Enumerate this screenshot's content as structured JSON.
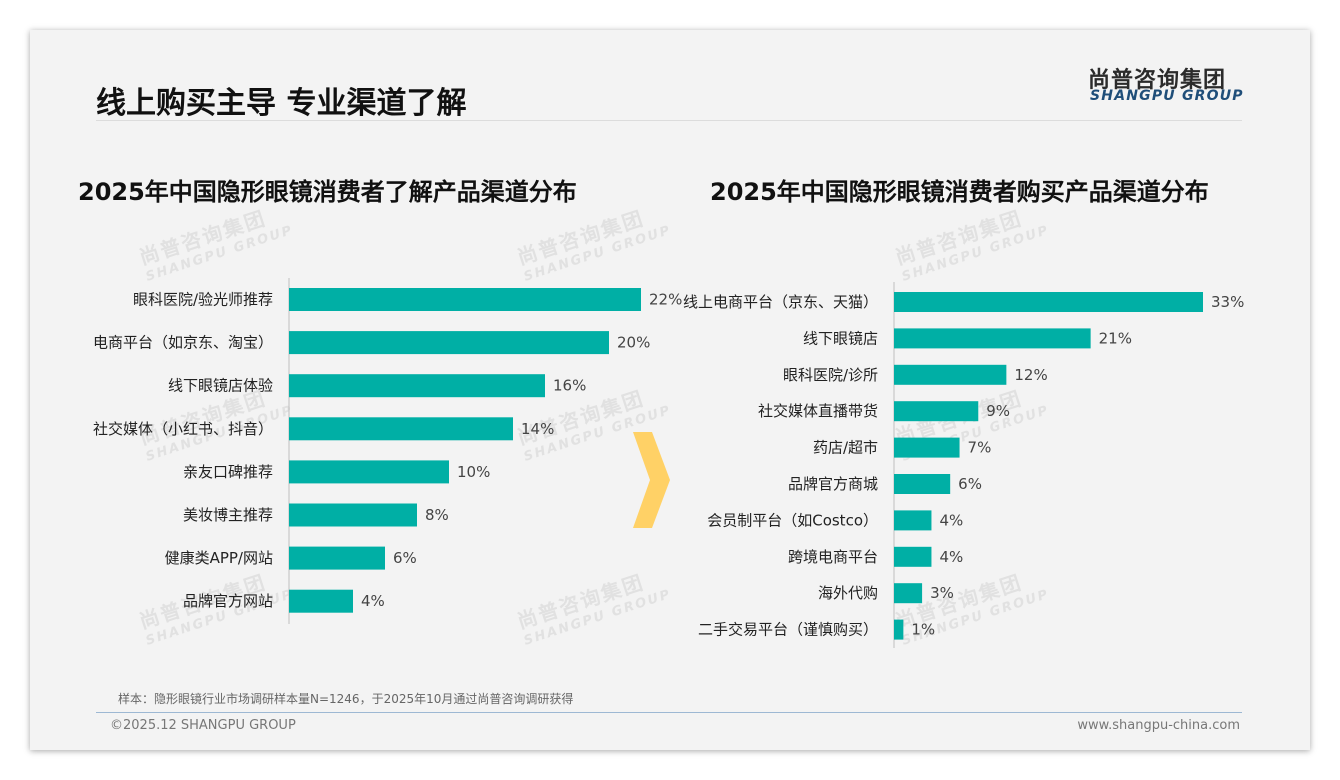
{
  "header": {
    "title": "线上购买主导 专业渠道了解",
    "logo_cn": "尚普咨询集团",
    "logo_en": "SHANGPU GROUP"
  },
  "watermark": {
    "cn": "尚普咨询集团",
    "en": "SHANGPU GROUP"
  },
  "colors": {
    "bar": "#00AFA5",
    "arrow": "#FFD166"
  },
  "chart_data": [
    {
      "type": "bar",
      "orientation": "horizontal",
      "title": "2025年中国隐形眼镜消费者了解产品渠道分布",
      "categories": [
        "眼科医院/验光师推荐",
        "电商平台（如京东、淘宝）",
        "线下眼镜店体验",
        "社交媒体（小红书、抖音）",
        "亲友口碑推荐",
        "美妆博主推荐",
        "健康类APP/网站",
        "品牌官方网站"
      ],
      "values": [
        22,
        20,
        16,
        14,
        10,
        8,
        6,
        4
      ],
      "value_labels": [
        "22%",
        "20%",
        "16%",
        "14%",
        "10%",
        "8%",
        "6%",
        "4%"
      ],
      "unit": "%",
      "xlim": [
        0,
        22
      ]
    },
    {
      "type": "bar",
      "orientation": "horizontal",
      "title": "2025年中国隐形眼镜消费者购买产品渠道分布",
      "categories": [
        "线上电商平台（京东、天猫）",
        "线下眼镜店",
        "眼科医院/诊所",
        "社交媒体直播带货",
        "药店/超市",
        "品牌官方商城",
        "会员制平台（如Costco）",
        "跨境电商平台",
        "海外代购",
        "二手交易平台（谨慎购买）"
      ],
      "values": [
        33,
        21,
        12,
        9,
        7,
        6,
        4,
        4,
        3,
        1
      ],
      "value_labels": [
        "33%",
        "21%",
        "12%",
        "9%",
        "7%",
        "6%",
        "4%",
        "4%",
        "3%",
        "1%"
      ],
      "unit": "%",
      "xlim": [
        0,
        33
      ]
    }
  ],
  "footer": {
    "note": "样本：隐形眼镜行业市场调研样本量N=1246，于2025年10月通过尚普咨询调研获得",
    "copyright": "©2025.12 SHANGPU GROUP",
    "website": "www.shangpu-china.com"
  }
}
